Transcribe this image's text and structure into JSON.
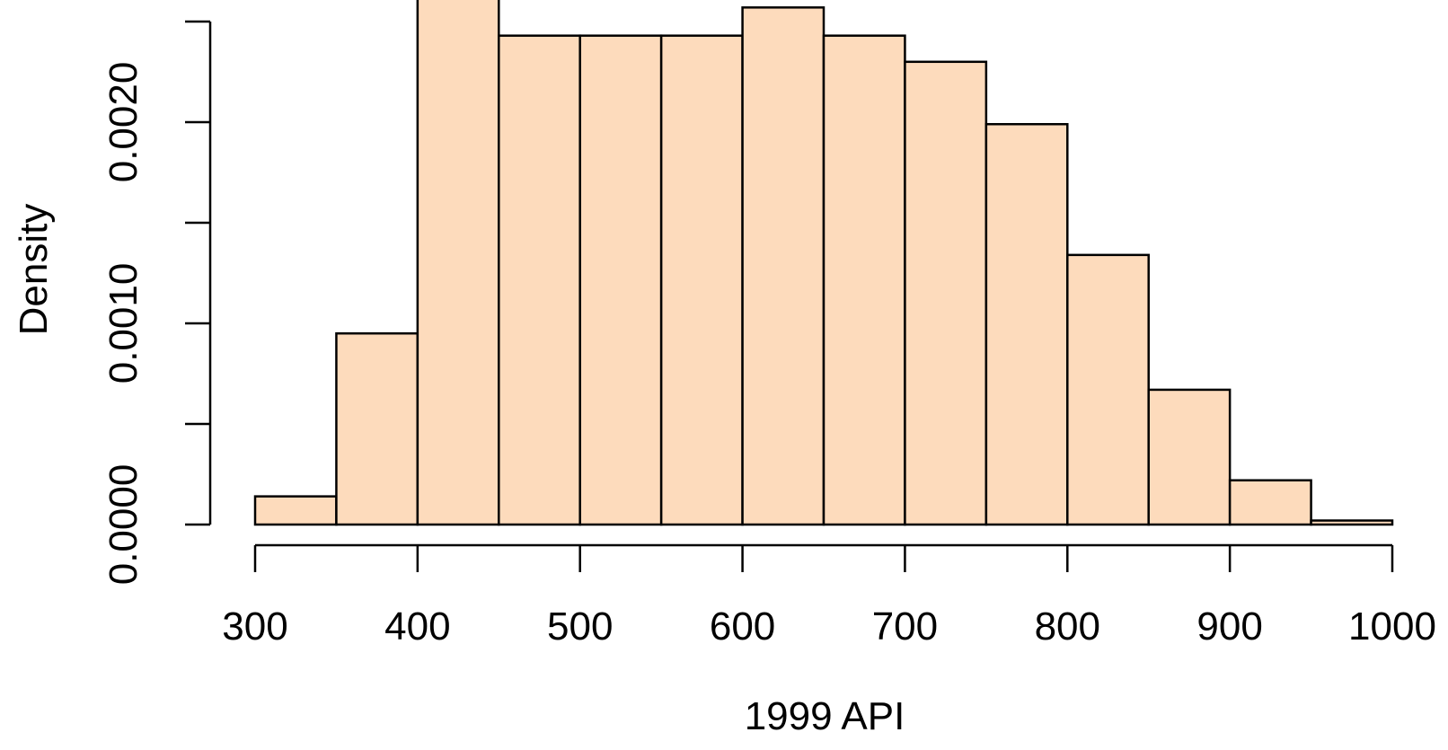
{
  "chart_data": {
    "type": "bar",
    "subtype": "histogram",
    "xlabel": "1999 API",
    "ylabel": "Density",
    "bin_edges": [
      300,
      350,
      400,
      450,
      500,
      550,
      600,
      650,
      700,
      750,
      800,
      850,
      900,
      950,
      1000
    ],
    "values": [
      0.00014,
      0.00095,
      0.00268,
      0.00243,
      0.00243,
      0.00243,
      0.00257,
      0.00243,
      0.0023,
      0.00199,
      0.00134,
      0.00067,
      0.00022,
      2e-05
    ],
    "xlim": [
      300,
      1000
    ],
    "ylim": [
      0,
      0.0025
    ],
    "x_ticks": [
      300,
      400,
      500,
      600,
      700,
      800,
      900,
      1000
    ],
    "x_tick_labels": [
      "300",
      "400",
      "500",
      "600",
      "700",
      "800",
      "900",
      "1000"
    ],
    "y_ticks": [
      0,
      0.0005,
      0.001,
      0.0015,
      0.002,
      0.0025
    ],
    "y_tick_labels": [
      "0.0000",
      "",
      "0.0010",
      "",
      "0.0020",
      ""
    ],
    "bar_color": "#FDDBBC",
    "edge_color": "#000000",
    "grid": false,
    "legend": false
  }
}
